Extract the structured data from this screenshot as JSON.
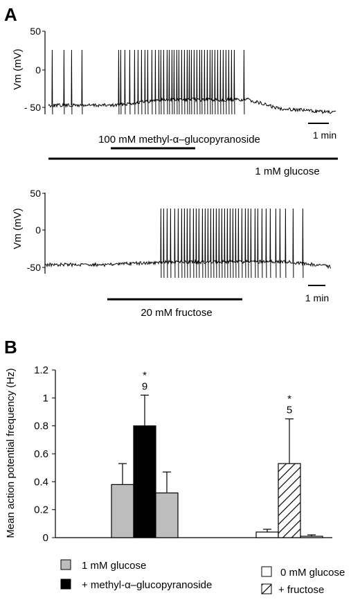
{
  "panel_a": {
    "label": "A",
    "trace1": {
      "ylabel": "Vm (mV)",
      "yticks": [
        "50",
        "0",
        "- 50"
      ],
      "scale_bar": "1 min",
      "treatments": [
        {
          "label": "100 mM methyl-α–glucopyranoside"
        },
        {
          "label": "1 mM glucose"
        }
      ]
    },
    "trace2": {
      "ylabel": "Vm (mV)",
      "yticks": [
        "50",
        "0",
        "-50"
      ],
      "scale_bar": "1 min",
      "treatments": [
        {
          "label": "20 mM fructose"
        }
      ]
    }
  },
  "panel_b": {
    "label": "B",
    "legend": [
      {
        "label": "1 mM glucose",
        "fill": "#bdbdbd"
      },
      {
        "label": "+ methyl-α–glucopyranoside",
        "fill": "#000000"
      },
      {
        "label": "0 mM glucose",
        "fill": "#ffffff"
      },
      {
        "label": "+ fructose",
        "fill": "hatch"
      }
    ],
    "annotations": [
      {
        "text": "*",
        "group": 0
      },
      {
        "text": "9",
        "group": 0
      },
      {
        "text": "*",
        "group": 1
      },
      {
        "text": "5",
        "group": 1
      }
    ]
  },
  "chart_data": {
    "type": "bar",
    "title": "",
    "xlabel": "",
    "ylabel": "Mean action potential frequency (Hz)",
    "ylim": [
      0,
      1.2
    ],
    "yticks": [
      "0",
      "0.2",
      "0.4",
      "0.6",
      "0.8",
      "1",
      "1.2"
    ],
    "grid": false,
    "groups": [
      {
        "bars": [
          {
            "condition": "1 mM glucose (before)",
            "value": 0.38,
            "error": 0.15,
            "fill": "#bdbdbd"
          },
          {
            "condition": "+ methyl-α–glucopyranoside",
            "value": 0.8,
            "error": 0.22,
            "fill": "#000000"
          },
          {
            "condition": "1 mM glucose (after)",
            "value": 0.32,
            "error": 0.15,
            "fill": "#bdbdbd"
          }
        ]
      },
      {
        "bars": [
          {
            "condition": "0 mM glucose (before)",
            "value": 0.04,
            "error": 0.02,
            "fill": "#ffffff"
          },
          {
            "condition": "+ fructose",
            "value": 0.53,
            "error": 0.32,
            "fill": "hatch"
          },
          {
            "condition": "0 mM glucose (after)",
            "value": 0.01,
            "error": 0.01,
            "fill": "#ffffff"
          }
        ]
      }
    ]
  }
}
